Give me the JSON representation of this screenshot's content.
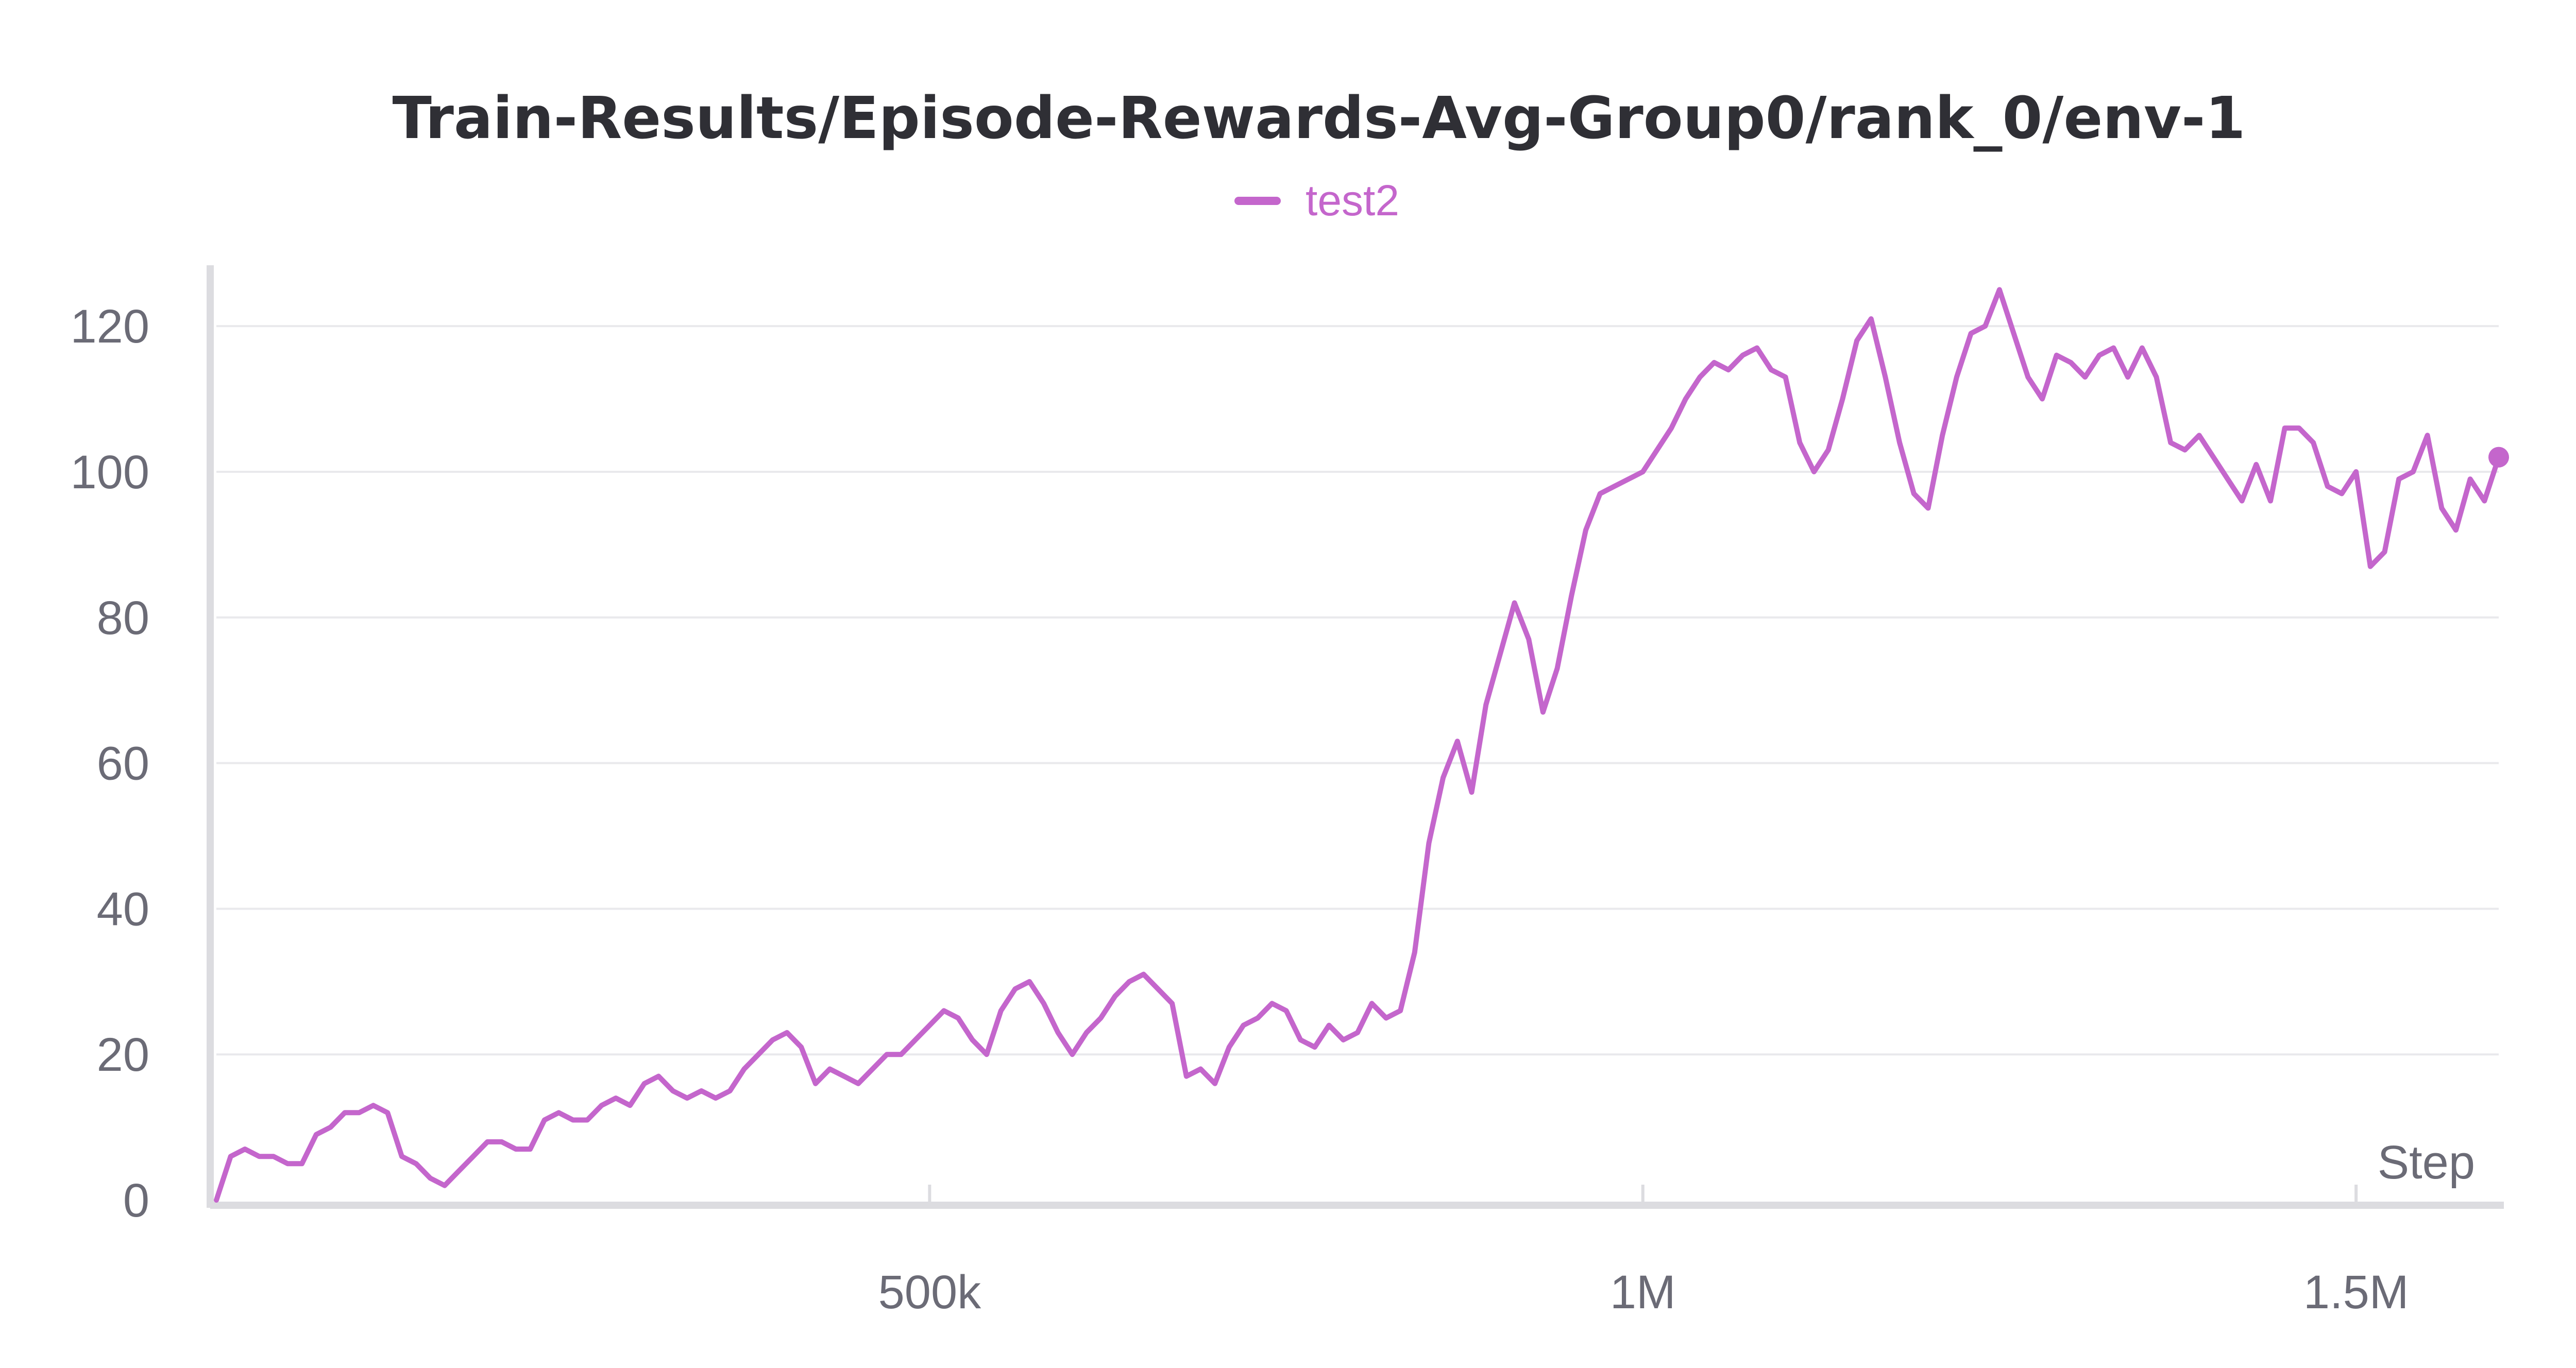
{
  "chart_data": {
    "type": "line",
    "title": "Train-Results/Episode-Rewards-Avg-Group0/rank_0/env-1",
    "xlabel": "Step",
    "ylabel": "",
    "xlim": [
      0,
      1600000
    ],
    "ylim": [
      0,
      128
    ],
    "yticks": [
      0,
      20,
      40,
      60,
      80,
      100,
      120
    ],
    "xticks": [
      500000,
      1000000,
      1500000
    ],
    "xtick_labels": [
      "500k",
      "1M",
      "1.5M"
    ],
    "grid": true,
    "legend_position": "top-center",
    "series": [
      {
        "name": "test2",
        "color": "#c466cc",
        "x": [
          0,
          10000,
          20000,
          30000,
          40000,
          50000,
          60000,
          70000,
          80000,
          90000,
          100000,
          110000,
          120000,
          130000,
          140000,
          150000,
          160000,
          170000,
          180000,
          190000,
          200000,
          210000,
          220000,
          230000,
          240000,
          250000,
          260000,
          270000,
          280000,
          290000,
          300000,
          310000,
          320000,
          330000,
          340000,
          350000,
          360000,
          370000,
          380000,
          390000,
          400000,
          410000,
          420000,
          430000,
          440000,
          450000,
          460000,
          470000,
          480000,
          490000,
          500000,
          510000,
          520000,
          530000,
          540000,
          550000,
          560000,
          570000,
          580000,
          590000,
          600000,
          610000,
          620000,
          630000,
          640000,
          650000,
          660000,
          670000,
          680000,
          690000,
          700000,
          710000,
          720000,
          730000,
          740000,
          750000,
          760000,
          770000,
          780000,
          790000,
          800000,
          810000,
          820000,
          830000,
          840000,
          850000,
          860000,
          870000,
          880000,
          890000,
          900000,
          910000,
          920000,
          930000,
          940000,
          950000,
          960000,
          970000,
          980000,
          990000,
          1000000,
          1010000,
          1020000,
          1030000,
          1040000,
          1050000,
          1060000,
          1070000,
          1080000,
          1090000,
          1100000,
          1110000,
          1120000,
          1130000,
          1140000,
          1150000,
          1160000,
          1170000,
          1180000,
          1190000,
          1200000,
          1210000,
          1220000,
          1230000,
          1240000,
          1250000,
          1260000,
          1270000,
          1280000,
          1290000,
          1300000,
          1310000,
          1320000,
          1330000,
          1340000,
          1350000,
          1360000,
          1370000,
          1380000,
          1390000,
          1400000,
          1410000,
          1420000,
          1430000,
          1440000,
          1450000,
          1460000,
          1470000,
          1480000,
          1490000,
          1500000,
          1510000,
          1520000,
          1530000,
          1540000,
          1550000,
          1560000,
          1570000,
          1580000,
          1590000,
          1600000
        ],
        "y": [
          0,
          6,
          7,
          6,
          6,
          5,
          5,
          9,
          10,
          12,
          12,
          13,
          12,
          6,
          5,
          3,
          2,
          4,
          6,
          8,
          8,
          7,
          7,
          11,
          12,
          11,
          11,
          13,
          14,
          13,
          16,
          17,
          15,
          14,
          15,
          14,
          15,
          18,
          20,
          22,
          23,
          21,
          16,
          18,
          17,
          16,
          18,
          20,
          20,
          22,
          24,
          26,
          25,
          22,
          20,
          26,
          29,
          30,
          27,
          23,
          20,
          23,
          25,
          28,
          30,
          31,
          29,
          27,
          17,
          18,
          16,
          21,
          24,
          25,
          27,
          26,
          22,
          21,
          24,
          22,
          23,
          27,
          25,
          26,
          34,
          49,
          58,
          63,
          56,
          68,
          75,
          82,
          77,
          67,
          73,
          83,
          92,
          97,
          98,
          99,
          100,
          103,
          106,
          110,
          113,
          115,
          114,
          116,
          117,
          114,
          113,
          104,
          100,
          103,
          110,
          118,
          121,
          113,
          104,
          97,
          95,
          105,
          113,
          119,
          120,
          125,
          119,
          113,
          110,
          116,
          115,
          113,
          116,
          117,
          113,
          117,
          113,
          104,
          103,
          105,
          102,
          99,
          96,
          101,
          96,
          106,
          106,
          104,
          98,
          97,
          100,
          87,
          89,
          99,
          100,
          105,
          95,
          92,
          99,
          96,
          102
        ]
      }
    ]
  }
}
